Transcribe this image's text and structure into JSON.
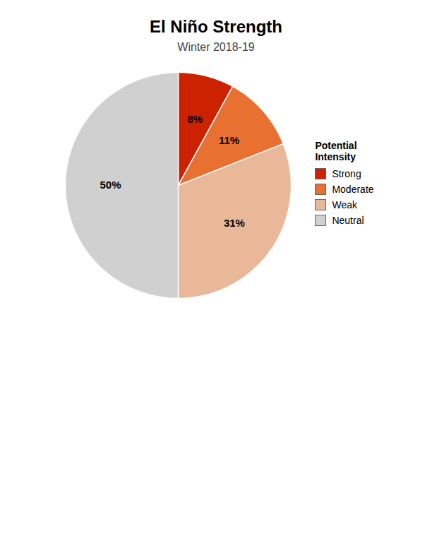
{
  "chart_data": {
    "type": "pie",
    "title": "El Niño Strength",
    "subtitle": "Winter 2018-19",
    "categories": [
      "Strong",
      "Moderate",
      "Weak",
      "Neutral"
    ],
    "values": [
      8,
      11,
      31,
      50
    ],
    "value_labels": [
      "8%",
      "11%",
      "31%",
      "50%"
    ],
    "colors": [
      "#cc2200",
      "#e87030",
      "#e8b898",
      "#d0d0d0"
    ],
    "data_labels": true,
    "legend": "right",
    "annotations": [
      "Potential\nIntensity"
    ]
  }
}
